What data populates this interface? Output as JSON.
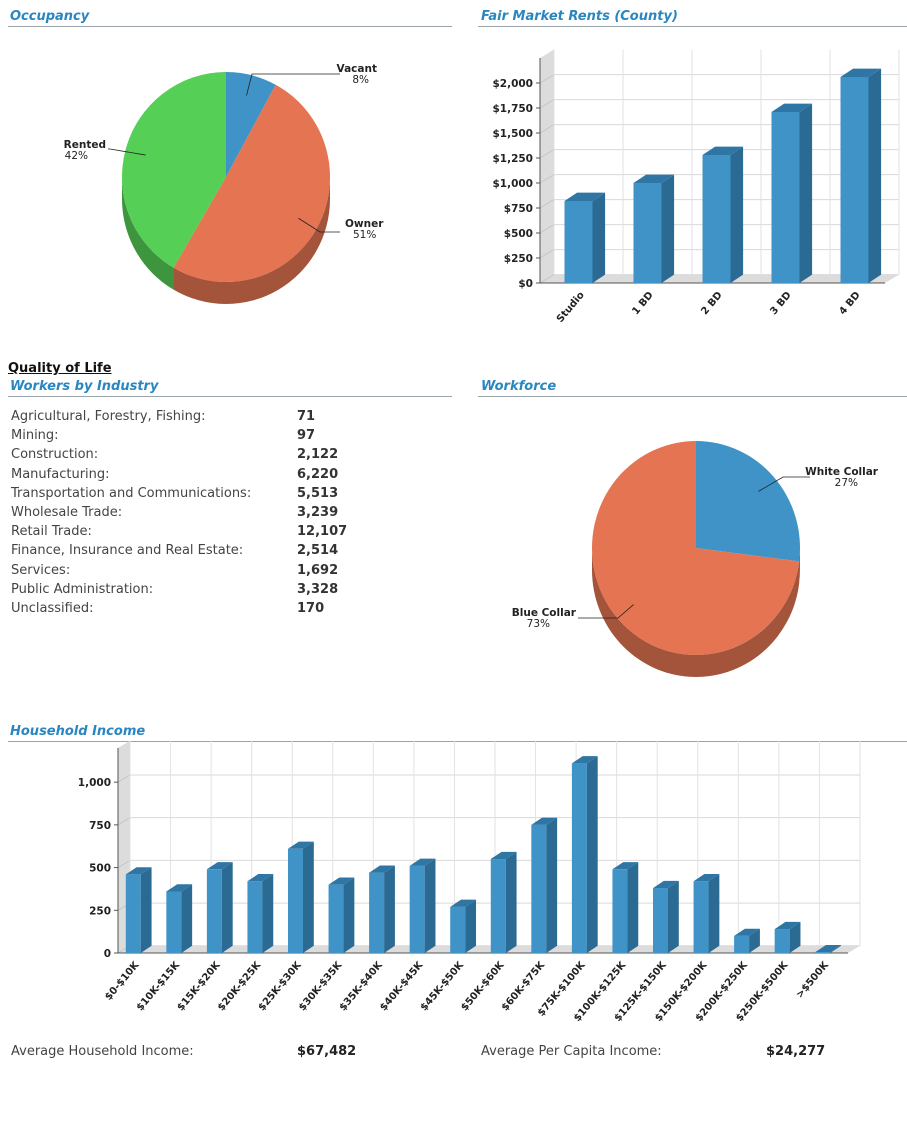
{
  "sections": {
    "occupancy": "Occupancy",
    "fmr": "Fair Market Rents (County)",
    "quality_of_life": "Quality of Life",
    "workers": "Workers by Industry",
    "workforce": "Workforce",
    "income": "Household Income"
  },
  "colors": {
    "blue": "#3f93c7",
    "orange": "#e47452",
    "green": "#55cf55",
    "title": "#2a86c0"
  },
  "chart_data": [
    {
      "id": "occupancy",
      "type": "pie",
      "slices": [
        {
          "label": "Vacant",
          "pct_label": "8%",
          "value": 8,
          "color": "#3f93c7"
        },
        {
          "label": "Owner",
          "pct_label": "51%",
          "value": 51,
          "color": "#e47452"
        },
        {
          "label": "Rented",
          "pct_label": "42%",
          "value": 42,
          "color": "#55cf55"
        }
      ]
    },
    {
      "id": "fmr",
      "type": "bar",
      "categories": [
        "Studio",
        "1 BD",
        "2 BD",
        "3 BD",
        "4 BD"
      ],
      "values": [
        820,
        1000,
        1280,
        1710,
        2060
      ],
      "y_ticks": [
        "$0",
        "$250",
        "$500",
        "$750",
        "$1,000",
        "$1,250",
        "$1,500",
        "$1,750",
        "$2,000"
      ],
      "ylim": [
        0,
        2250
      ],
      "grid": true
    },
    {
      "id": "workforce",
      "type": "pie",
      "slices": [
        {
          "label": "White Collar",
          "pct_label": "27%",
          "value": 27,
          "color": "#3f93c7"
        },
        {
          "label": "Blue Collar",
          "pct_label": "73%",
          "value": 73,
          "color": "#e47452"
        }
      ]
    },
    {
      "id": "income",
      "type": "bar",
      "categories": [
        "$0-$10K",
        "$10K-$15K",
        "$15K-$20K",
        "$20K-$25K",
        "$25K-$30K",
        "$30K-$35K",
        "$35K-$40K",
        "$40K-$45K",
        "$45K-$50K",
        "$50K-$60K",
        "$60K-$75K",
        "$75K-$100K",
        "$100K-$125K",
        "$125K-$150K",
        "$150K-$200K",
        "$200K-$250K",
        "$250K-$500K",
        ">$500K"
      ],
      "values": [
        460,
        360,
        490,
        420,
        610,
        400,
        470,
        510,
        270,
        550,
        750,
        1110,
        490,
        380,
        420,
        100,
        140,
        5
      ],
      "y_ticks": [
        "0",
        "250",
        "500",
        "750",
        "1,000"
      ],
      "ylim": [
        0,
        1200
      ],
      "grid": true
    }
  ],
  "workers_by_industry": [
    {
      "label": "Agricultural, Forestry, Fishing:",
      "value": "71"
    },
    {
      "label": "Mining:",
      "value": "97"
    },
    {
      "label": "Construction:",
      "value": "2,122"
    },
    {
      "label": "Manufacturing:",
      "value": "6,220"
    },
    {
      "label": "Transportation and Communications:",
      "value": "5,513"
    },
    {
      "label": "Wholesale Trade:",
      "value": "3,239"
    },
    {
      "label": "Retail Trade:",
      "value": "12,107"
    },
    {
      "label": "Finance, Insurance and Real Estate:",
      "value": "2,514"
    },
    {
      "label": "Services:",
      "value": "1,692"
    },
    {
      "label": "Public Administration:",
      "value": "3,328"
    },
    {
      "label": "Unclassified:",
      "value": "170"
    }
  ],
  "footer": {
    "avg_household_label": "Average Household Income:",
    "avg_household_value": "$67,482",
    "avg_per_capita_label": "Average Per Capita Income:",
    "avg_per_capita_value": "$24,277"
  }
}
